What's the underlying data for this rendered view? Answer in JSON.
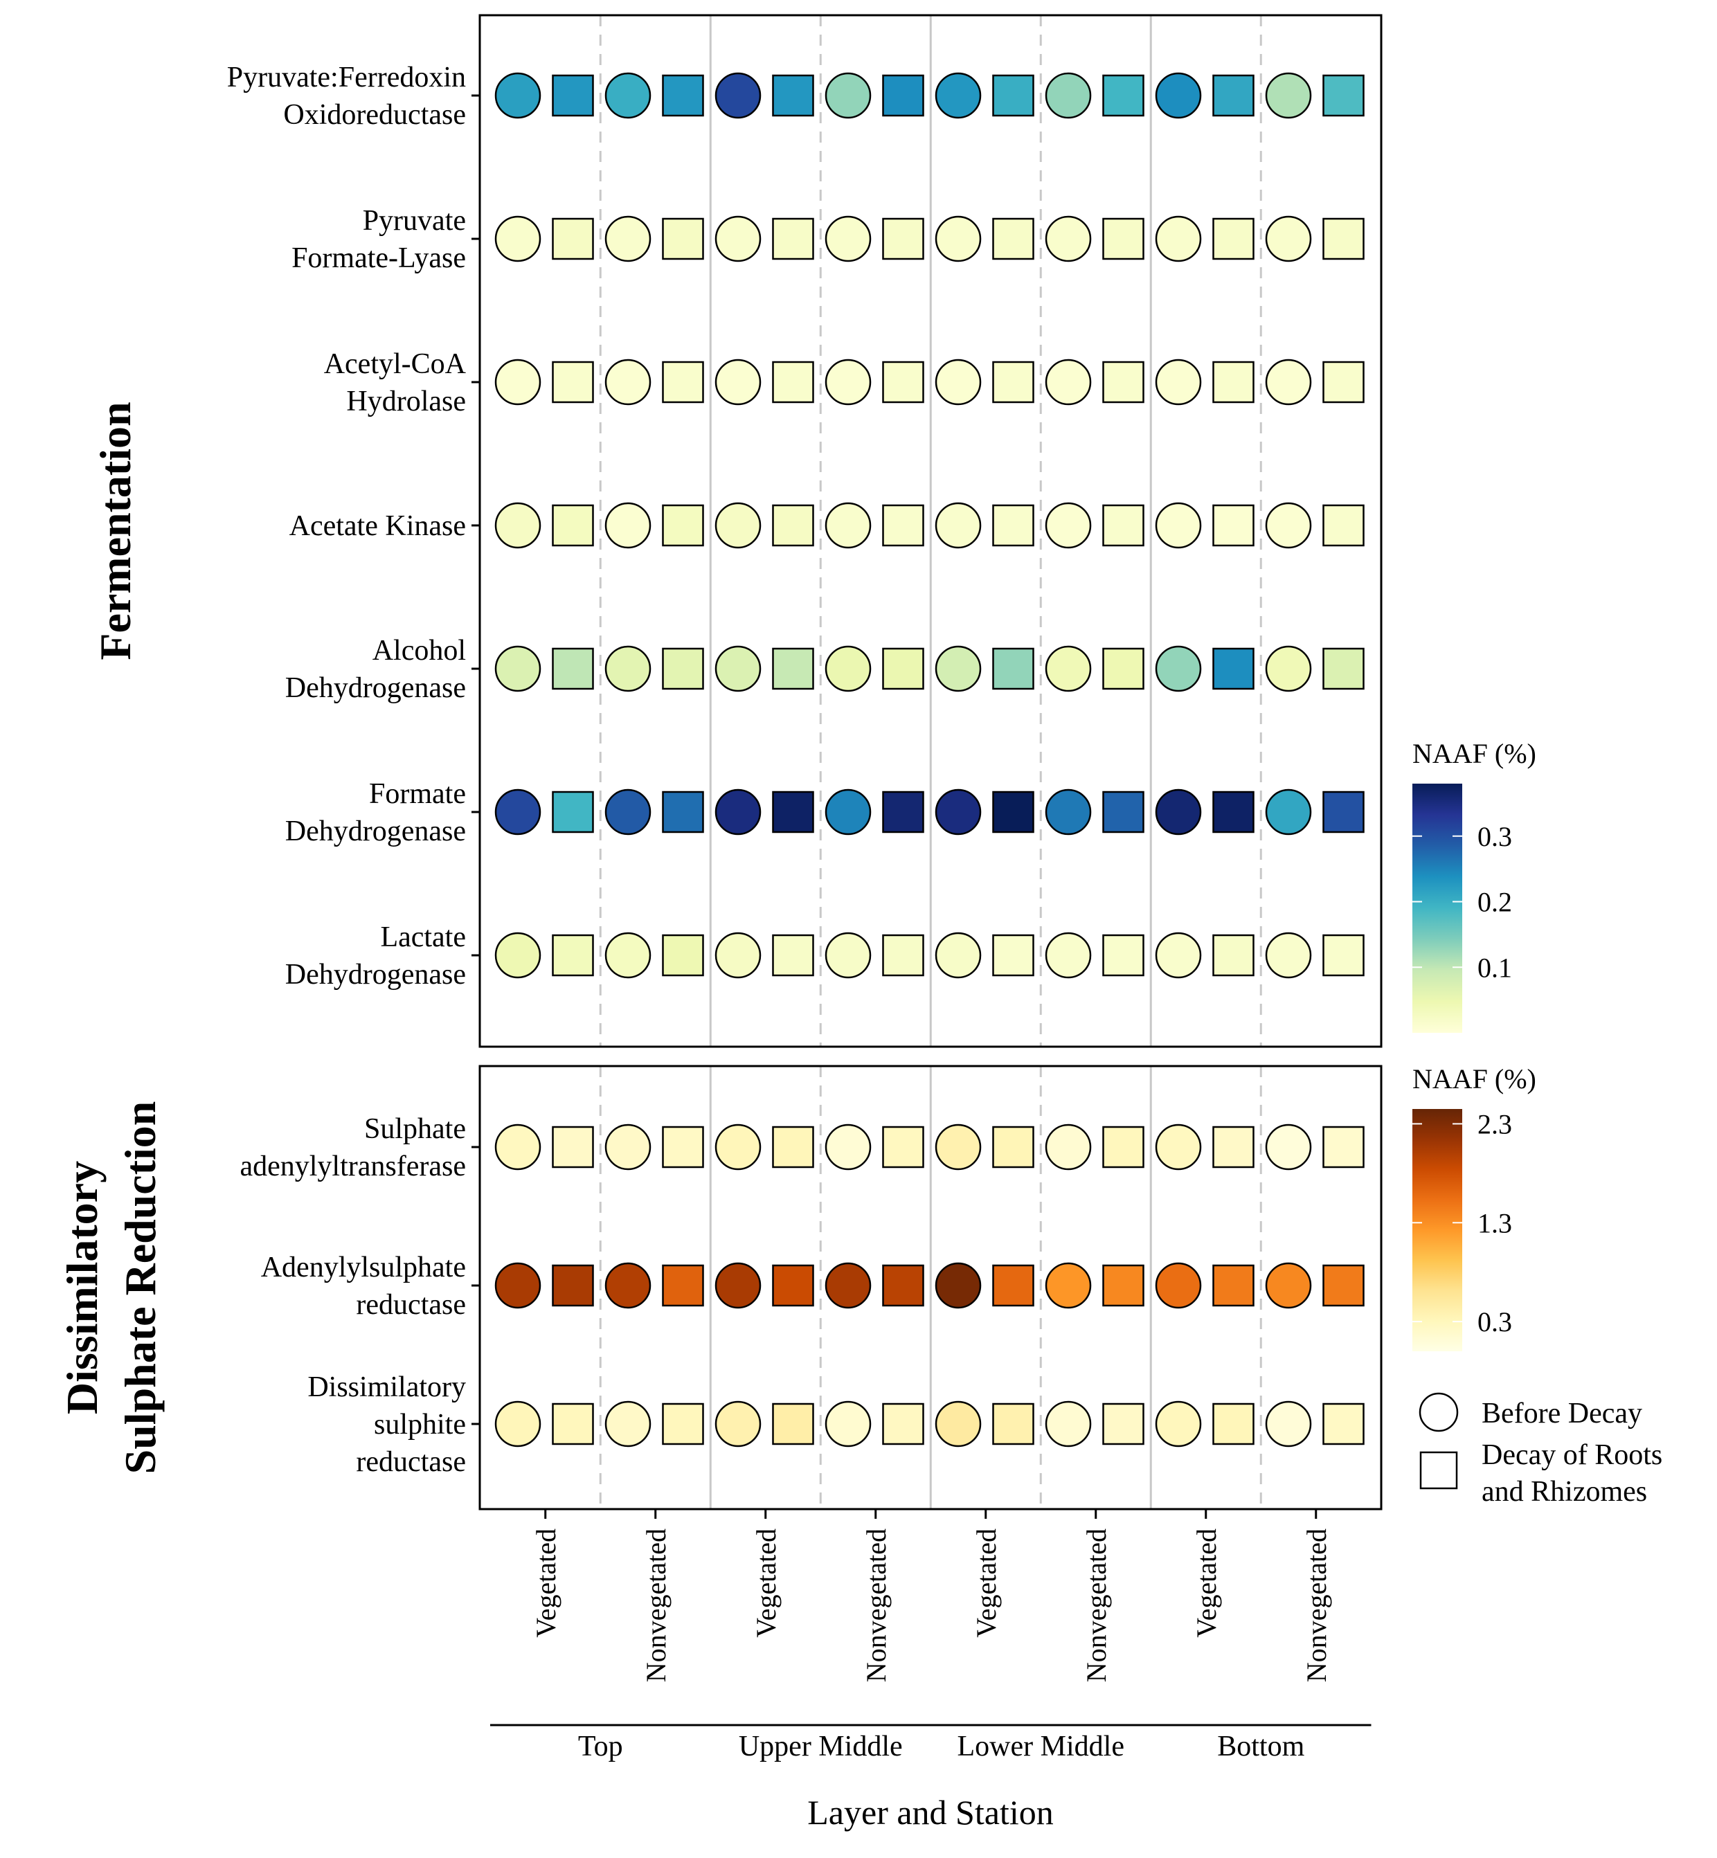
{
  "chart_data": {
    "type": "heatmap",
    "xlabel": "Layer and Station",
    "layers": [
      "Top",
      "Upper Middle",
      "Lower Middle",
      "Bottom"
    ],
    "stations": [
      "Vegetated",
      "Nonvegetated"
    ],
    "treatments": [
      "Before Decay",
      "Decay of Roots and Rhizomes"
    ],
    "panels": [
      {
        "title": "Fermentation",
        "legend_title": "NAAF (%)",
        "scale": {
          "min": 0.0,
          "max": 0.38,
          "ticks": [
            0.1,
            0.2,
            0.3
          ],
          "tick_labels": [
            "0.1",
            "0.2",
            "0.3"
          ],
          "colors": [
            "#ffffd9",
            "#edf8b1",
            "#c7e9b4",
            "#7fcdbb",
            "#41b6c4",
            "#1d91c0",
            "#225ea8",
            "#253494",
            "#081d58"
          ]
        },
        "enzymes": [
          {
            "label": [
              "Pyruvate:Ferredoxin",
              "Oxidoreductase"
            ],
            "values": [
              0.22,
              0.23,
              0.2,
              0.23,
              0.31,
              0.23,
              0.13,
              0.24,
              0.23,
              0.2,
              0.13,
              0.19,
              0.24,
              0.21,
              0.11,
              0.18
            ]
          },
          {
            "label": [
              "Pyruvate",
              "Formate-Lyase"
            ],
            "values": [
              0.015,
              0.025,
              0.015,
              0.025,
              0.015,
              0.02,
              0.015,
              0.02,
              0.015,
              0.02,
              0.015,
              0.02,
              0.015,
              0.02,
              0.015,
              0.02
            ]
          },
          {
            "label": [
              "Acetyl-CoA",
              "Hydrolase"
            ],
            "values": [
              0.01,
              0.015,
              0.01,
              0.015,
              0.01,
              0.015,
              0.01,
              0.015,
              0.01,
              0.015,
              0.01,
              0.015,
              0.01,
              0.015,
              0.01,
              0.015
            ]
          },
          {
            "label": [
              "Acetate Kinase"
            ],
            "values": [
              0.025,
              0.03,
              0.01,
              0.03,
              0.025,
              0.025,
              0.015,
              0.015,
              0.015,
              0.015,
              0.01,
              0.015,
              0.01,
              0.01,
              0.01,
              0.015
            ]
          },
          {
            "label": [
              "Alcohol",
              "Dehydrogenase"
            ],
            "values": [
              0.07,
              0.1,
              0.06,
              0.06,
              0.07,
              0.095,
              0.05,
              0.05,
              0.08,
              0.13,
              0.04,
              0.045,
              0.13,
              0.24,
              0.04,
              0.07
            ]
          },
          {
            "label": [
              "Formate",
              "Dehydrogenase"
            ],
            "values": [
              0.31,
              0.19,
              0.29,
              0.27,
              0.35,
              0.37,
              0.25,
              0.36,
              0.35,
              0.39,
              0.26,
              0.28,
              0.36,
              0.37,
              0.21,
              0.3
            ]
          },
          {
            "label": [
              "Lactate",
              "Dehydrogenase"
            ],
            "values": [
              0.045,
              0.035,
              0.03,
              0.045,
              0.025,
              0.02,
              0.02,
              0.02,
              0.02,
              0.015,
              0.015,
              0.015,
              0.015,
              0.02,
              0.015,
              0.015
            ]
          }
        ]
      },
      {
        "title": [
          "Dissimilatory",
          "Sulphate Reduction"
        ],
        "legend_title": "NAAF (%)",
        "scale": {
          "min": 0.0,
          "max": 2.45,
          "ticks": [
            0.3,
            1.3,
            2.3
          ],
          "tick_labels": [
            "0.3",
            "1.3",
            "2.3"
          ],
          "colors": [
            "#ffffe5",
            "#fff7bc",
            "#fee391",
            "#fec44f",
            "#fe9929",
            "#ec7014",
            "#cc4c02",
            "#993404",
            "#662506"
          ]
        },
        "enzymes": [
          {
            "label": [
              "Sulphate",
              "adenylyltransferase"
            ],
            "values": [
              0.28,
              0.22,
              0.22,
              0.24,
              0.32,
              0.32,
              0.12,
              0.28,
              0.4,
              0.34,
              0.14,
              0.3,
              0.28,
              0.22,
              0.08,
              0.18
            ]
          },
          {
            "label": [
              "Adenylylsulphate",
              "reductase"
            ],
            "values": [
              2.05,
              2.05,
              2.0,
              1.65,
              2.05,
              1.85,
              2.05,
              1.95,
              2.35,
              1.6,
              1.25,
              1.35,
              1.55,
              1.45,
              1.35,
              1.45
            ]
          },
          {
            "label": [
              "Dissimilatory",
              "sulphite",
              "reductase"
            ],
            "values": [
              0.32,
              0.3,
              0.22,
              0.3,
              0.4,
              0.45,
              0.16,
              0.26,
              0.5,
              0.4,
              0.14,
              0.22,
              0.3,
              0.32,
              0.1,
              0.24
            ]
          }
        ]
      }
    ],
    "legend": {
      "shapes": [
        {
          "shape": "circle",
          "label": [
            "Before Decay"
          ]
        },
        {
          "shape": "square",
          "label": [
            "Decay of Roots",
            "and Rhizomes"
          ]
        }
      ]
    },
    "grid": false
  }
}
